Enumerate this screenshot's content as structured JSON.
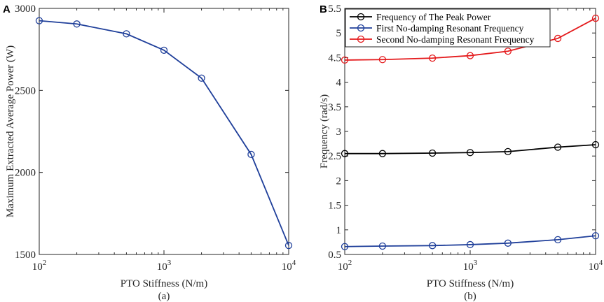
{
  "chart_data": [
    {
      "type": "line",
      "panel_letter": "A",
      "caption": "(a)",
      "xlabel": "PTO Stiffness (N/m)",
      "ylabel": "Maximum Extracted Average Power (W)",
      "x_scale": "log",
      "xlim": [
        100,
        10000
      ],
      "ylim": [
        1500,
        3000
      ],
      "x_ticks": [
        {
          "value": 100,
          "base": "10",
          "exp": "2"
        },
        {
          "value": 1000,
          "base": "10",
          "exp": "3"
        },
        {
          "value": 10000,
          "base": "10",
          "exp": "4"
        }
      ],
      "y_ticks": [
        {
          "value": 1500,
          "label": "1500"
        },
        {
          "value": 2000,
          "label": "2000"
        },
        {
          "value": 2500,
          "label": "2500"
        },
        {
          "value": 3000,
          "label": "3000"
        }
      ],
      "grid": false,
      "x": [
        100,
        200,
        500,
        1000,
        2000,
        5000,
        10000
      ],
      "series": [
        {
          "name": "Maximum Extracted Average Power",
          "color": "#1f3f9a",
          "values": [
            2925,
            2905,
            2845,
            2745,
            2575,
            2110,
            1555
          ]
        }
      ]
    },
    {
      "type": "line",
      "panel_letter": "B",
      "caption": "(b)",
      "xlabel": "PTO Stiffness (N/m)",
      "ylabel": "Frequency (rad/s)",
      "x_scale": "log",
      "xlim": [
        100,
        10000
      ],
      "ylim": [
        0.5,
        5.5
      ],
      "x_ticks": [
        {
          "value": 100,
          "base": "10",
          "exp": "2"
        },
        {
          "value": 1000,
          "base": "10",
          "exp": "3"
        },
        {
          "value": 10000,
          "base": "10",
          "exp": "4"
        }
      ],
      "y_ticks": [
        {
          "value": 0.5,
          "label": "0.5"
        },
        {
          "value": 1,
          "label": "1"
        },
        {
          "value": 1.5,
          "label": "1.5"
        },
        {
          "value": 2,
          "label": "2"
        },
        {
          "value": 2.5,
          "label": "2.5"
        },
        {
          "value": 3,
          "label": "3"
        },
        {
          "value": 3.5,
          "label": "3.5"
        },
        {
          "value": 4,
          "label": "4"
        },
        {
          "value": 4.5,
          "label": "4.5"
        },
        {
          "value": 5,
          "label": "5"
        },
        {
          "value": 5.5,
          "label": "5.5"
        }
      ],
      "grid": false,
      "legend_position": "top-left",
      "x": [
        100,
        200,
        500,
        1000,
        2000,
        5000,
        10000
      ],
      "series": [
        {
          "name": "Frequency of The Peak Power",
          "color": "#000000",
          "values": [
            2.55,
            2.55,
            2.56,
            2.57,
            2.59,
            2.68,
            2.73
          ]
        },
        {
          "name": "First No-damping Resonant Frequency",
          "color": "#1f3f9a",
          "values": [
            0.66,
            0.67,
            0.68,
            0.7,
            0.73,
            0.8,
            0.88
          ]
        },
        {
          "name": "Second No-damping Resonant Frequency",
          "color": "#e41a1c",
          "values": [
            4.45,
            4.46,
            4.49,
            4.54,
            4.63,
            4.89,
            5.3
          ]
        }
      ]
    }
  ]
}
